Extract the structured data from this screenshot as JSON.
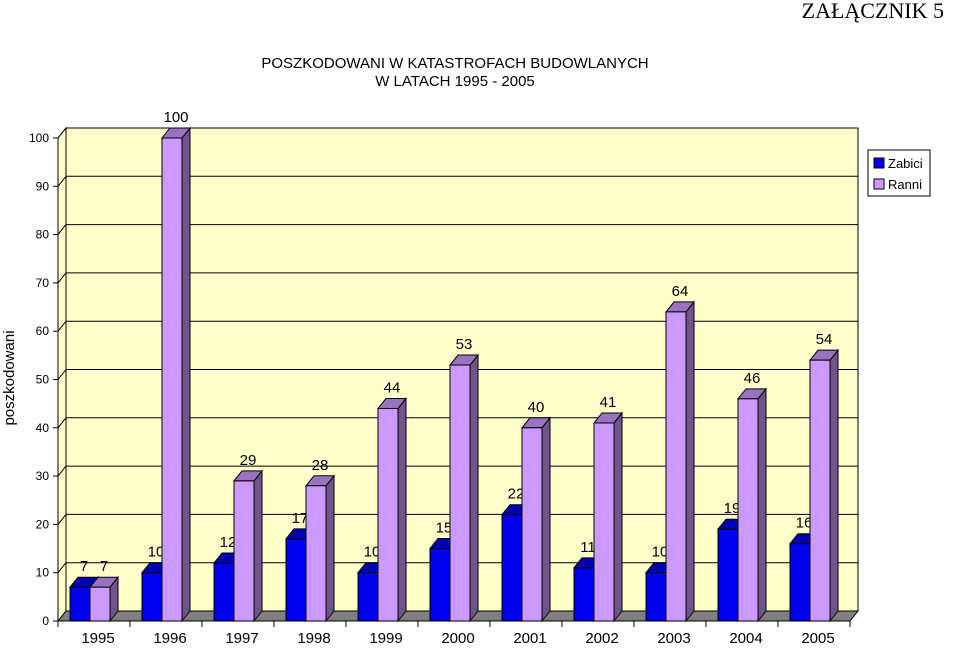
{
  "corner_label": "ZAŁĄCZNIK 5",
  "chart_data": {
    "type": "bar",
    "title": "POSZKODOWANI W KATASTROFACH BUDOWLANYCH",
    "subtitle": "W LATACH 1995 - 2005",
    "ylabel": "poszkodowani",
    "xlabel": "",
    "ylim": [
      0,
      100
    ],
    "yticks": [
      0,
      10,
      20,
      30,
      40,
      50,
      60,
      70,
      80,
      90,
      100
    ],
    "grid": true,
    "legend_position": "top-right",
    "categories": [
      "1995",
      "1996",
      "1997",
      "1998",
      "1999",
      "2000",
      "2001",
      "2002",
      "2003",
      "2004",
      "2005"
    ],
    "series": [
      {
        "name": "Zabici",
        "color": "#0000ee",
        "values": [
          7,
          10,
          12,
          17,
          10,
          15,
          22,
          11,
          10,
          19,
          16
        ]
      },
      {
        "name": "Ranni",
        "color": "#cc99ff",
        "values": [
          7,
          100,
          29,
          28,
          44,
          53,
          40,
          41,
          64,
          46,
          54
        ]
      }
    ],
    "plot_background": "#ffffcc",
    "floor_color": "#808080"
  }
}
